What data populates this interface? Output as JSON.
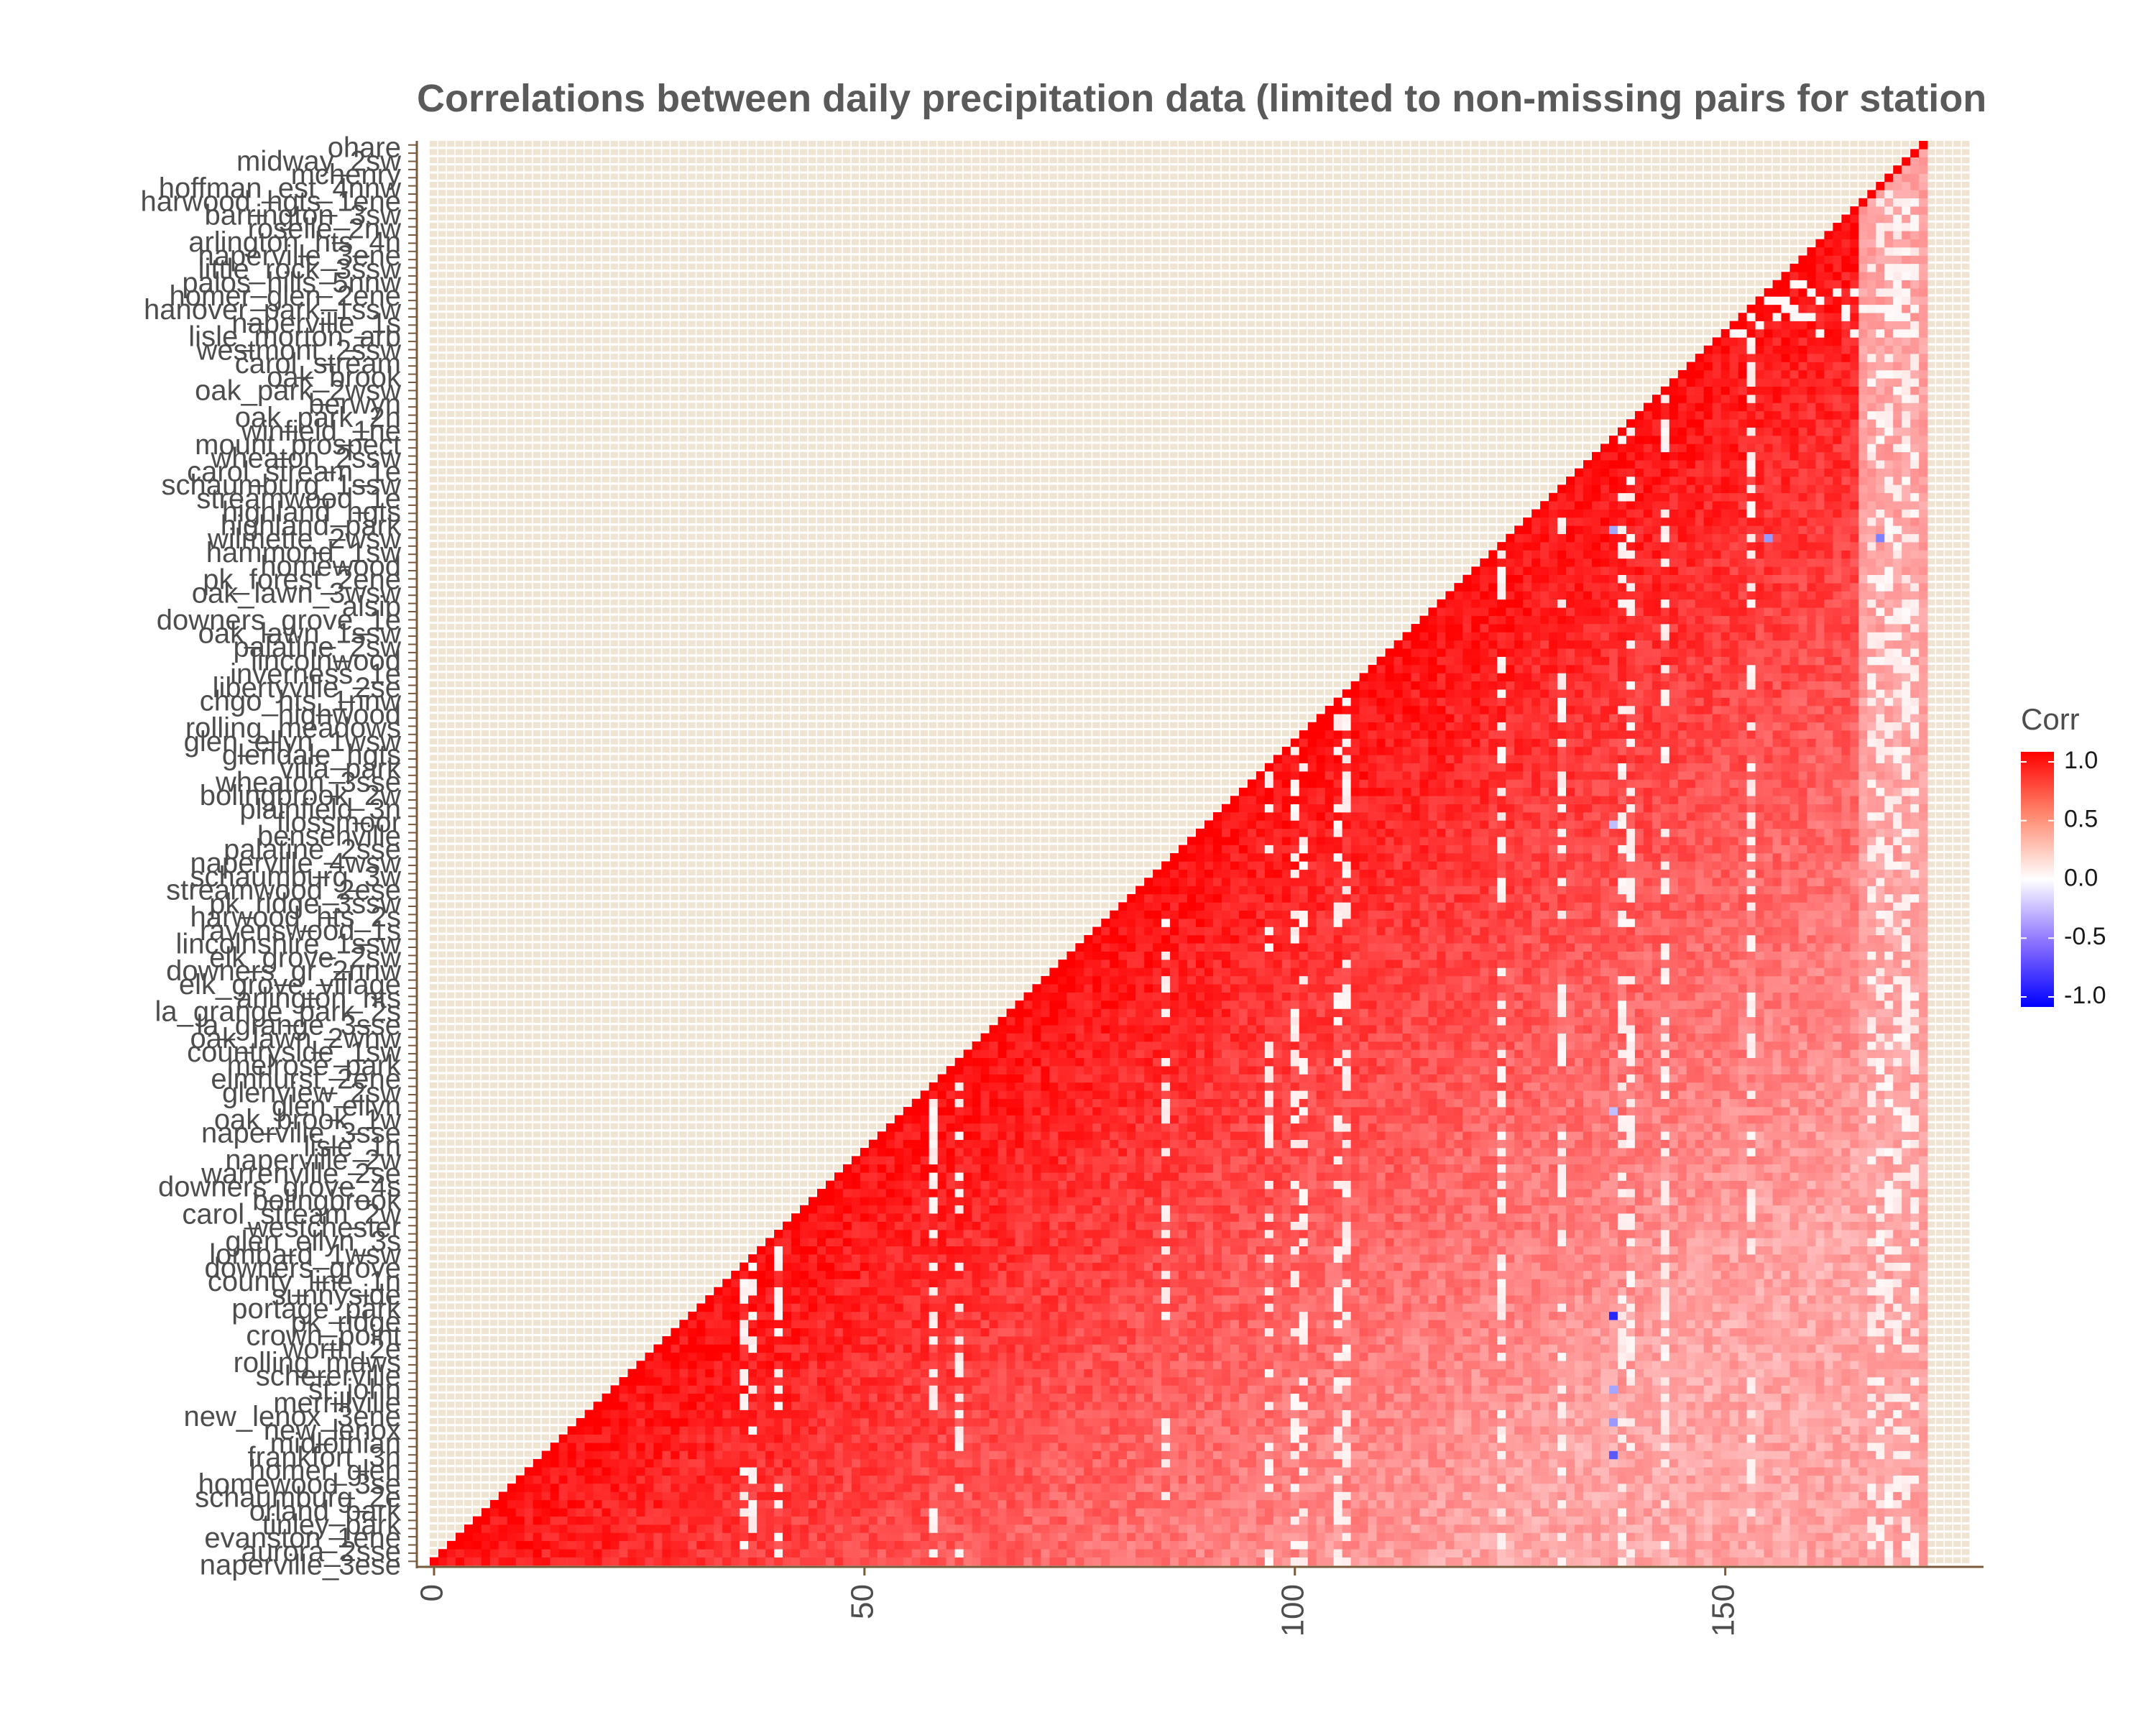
{
  "chart_data": {
    "type": "heatmap",
    "title": "Correlations between daily precipitation data (limited to non-missing pairs for station",
    "xlabel": "",
    "ylabel": "",
    "x_ticks": [
      0,
      50,
      100,
      150
    ],
    "xlim": [
      -2,
      180
    ],
    "n_stations": 174,
    "value_range": [
      -1,
      1
    ],
    "legend": {
      "title": "Corr",
      "ticks": [
        {
          "value": 1.0,
          "label": "1.0"
        },
        {
          "value": 0.5,
          "label": "0.5"
        },
        {
          "value": 0.0,
          "label": "0.0"
        },
        {
          "value": -0.5,
          "label": "-0.5"
        },
        {
          "value": -1.0,
          "label": "-1.0"
        }
      ],
      "placement": "right"
    },
    "colors": {
      "high": "#ff0000",
      "mid": "#ffffff",
      "low": "#0000ff",
      "empty": "#efe3d2",
      "axis": "#7a5a3a"
    },
    "typical_corr_range": [
      0.35,
      0.95
    ],
    "low_corr_columns": [
      36,
      37,
      40,
      58,
      61,
      85,
      97,
      100,
      101,
      105,
      106,
      124,
      131,
      138,
      139,
      143,
      153,
      167,
      168,
      169,
      170,
      171,
      172
    ],
    "negative_cells": [
      {
        "col": 140,
        "row": 154,
        "corr": -0.55
      },
      {
        "col": 137,
        "row": 126,
        "corr": -0.35
      },
      {
        "col": 155,
        "row": 125,
        "corr": -0.4
      },
      {
        "col": 168,
        "row": 125,
        "corr": -0.5
      },
      {
        "col": 137,
        "row": 90,
        "corr": -0.25
      },
      {
        "col": 137,
        "row": 55,
        "corr": -0.25
      },
      {
        "col": 137,
        "row": 30,
        "corr": -0.85
      },
      {
        "col": 137,
        "row": 21,
        "corr": -0.35
      },
      {
        "col": 137,
        "row": 17,
        "corr": -0.4
      },
      {
        "col": 137,
        "row": 13,
        "corr": -0.65
      }
    ],
    "row_labels": [
      "ohare",
      "midway_2sw",
      "mchenry",
      "hoffman_est_4nnw",
      "harwood_hgts_1ene",
      "barrington_3sw",
      "roselle_2nw",
      "arlington_hts_4n",
      "naperville_3ene",
      "little_rock_3ssw",
      "palos_hills_5nnw",
      "homer_glen_2ene",
      "hanover_park_1ssw",
      "naperville_1s",
      "lisle_morton_arb",
      "westmont_2ssw",
      "carol_stream",
      "oak_brook",
      "oak_park_2wsw",
      "berwyn",
      "oak_park_2n",
      "winfield_1ne",
      "mount_prospect",
      "wheaton_2ssw",
      "carol_stream_1e",
      "schaumburg_1ssw",
      "streamwood_1e",
      "highland_hgts",
      "highland_park",
      "wilmette_2wsw",
      "hammond_1sw",
      "homewood",
      "pk_forest_2ene",
      "oak_lawn_3wsw",
      "alsip",
      "downers_grove_1e",
      "oak_lawn_1ssw",
      "palatine_2sw",
      "lincolnwood",
      "inverness_1e",
      "libertyville_2se",
      "chgo_hts_1nnw",
      "highwood",
      "rolling_meadows",
      "glen_ellyn_1wsw",
      "glendale_hgts",
      "villa_park",
      "wheaton_3sse",
      "bolingbrook_2w",
      "plainfield_3n",
      "flossmoor",
      "bensenville",
      "palatine_2sse",
      "naperville_4wsw",
      "schaumburg_3w",
      "streamwood_2ese",
      "pk_ridge_3ssw",
      "harwood_hts_2s",
      "ravenswood_1s",
      "lincolnshire_1ssw",
      "elk_grove_2sw",
      "downers_gr_2nnw",
      "elk_grove_village",
      "arlington_hts",
      "la_grange_park_2s",
      "la_grange_3sse",
      "oak_lawn_2wnw",
      "countryside_1sw",
      "melrose_park",
      "elmhurst_2ene",
      "glenview_2sw",
      "glen_ellyn",
      "oak_brook_1w",
      "naperville_3sse",
      "lisle_1n",
      "naperville_2w",
      "warrenville_2se",
      "downers_grove_4s",
      "bolingbrook",
      "carol_stream_2w",
      "westchester",
      "glen_ellyn_3s",
      "lombard_1wsw",
      "downers_grove",
      "county_line_1n",
      "sunnyside",
      "portage_park",
      "pk_ridge",
      "crown_point",
      "worth_2e",
      "rolling_mdws",
      "schererville",
      "st_john",
      "merrillville",
      "new_lenox_3ene",
      "new_lenox",
      "midlothian",
      "frankfort_3n",
      "homer_glen",
      "homewood_3se",
      "schaumburg_2e",
      "orland_park",
      "tinley_park",
      "evanston_1ene",
      "aurora_2sse",
      "naperville_3ese"
    ]
  }
}
